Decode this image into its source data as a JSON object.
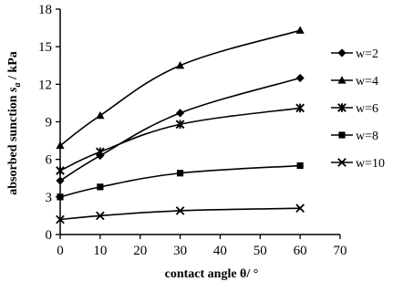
{
  "chart_data": {
    "type": "line",
    "title": "",
    "xlabel": "contact angle θ/ °",
    "ylabel": "absorbed sunction  s_a  / kPa",
    "xlim": [
      0,
      70
    ],
    "ylim": [
      0,
      18
    ],
    "x_ticks": [
      0,
      10,
      20,
      30,
      40,
      50,
      60,
      70
    ],
    "y_ticks": [
      0,
      3,
      6,
      9,
      12,
      15,
      18
    ],
    "grid": false,
    "legend_position": "right",
    "x": [
      0,
      10,
      30,
      60
    ],
    "series": [
      {
        "name": "w=2",
        "marker": "diamond",
        "values": [
          4.3,
          6.3,
          9.7,
          12.5
        ]
      },
      {
        "name": "w=4",
        "marker": "triangle",
        "values": [
          7.1,
          9.5,
          13.5,
          16.3
        ]
      },
      {
        "name": "w=6",
        "marker": "star",
        "values": [
          5.1,
          6.6,
          8.8,
          10.1
        ]
      },
      {
        "name": "w=8",
        "marker": "square",
        "values": [
          3.0,
          3.8,
          4.9,
          5.5
        ]
      },
      {
        "name": "w=10",
        "marker": "x",
        "values": [
          1.2,
          1.5,
          1.9,
          2.1
        ]
      }
    ],
    "line_color": "#000000"
  }
}
